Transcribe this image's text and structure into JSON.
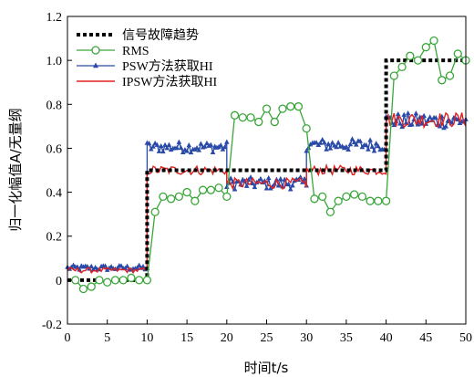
{
  "chart_data": {
    "type": "line",
    "title": "",
    "xlabel": "时间t/s",
    "ylabel": "归一化幅值A/无量纲",
    "xlim": [
      0,
      50
    ],
    "ylim": [
      -0.2,
      1.2
    ],
    "xticks": [
      "0",
      "5",
      "10",
      "15",
      "20",
      "25",
      "30",
      "35",
      "40",
      "45",
      "50"
    ],
    "yticks": [
      "-0.2",
      "0",
      "0.2",
      "0.4",
      "0.6",
      "0.8",
      "1.0",
      "1.2"
    ],
    "grid": false,
    "legend_position": "top-left",
    "series": [
      {
        "name": "信号故障趋势",
        "color": "#000000",
        "style": "dotted-step",
        "x": [
          0,
          10,
          10,
          20,
          20,
          40,
          40,
          50
        ],
        "y": [
          0,
          0,
          0.5,
          0.5,
          0.5,
          0.5,
          1.0,
          1.0
        ]
      },
      {
        "name": "RMS",
        "color": "#3aa63a",
        "marker": "circle-open",
        "x": [
          1,
          2,
          3,
          4,
          5,
          6,
          7,
          8,
          9,
          10,
          11,
          12,
          13,
          14,
          15,
          16,
          17,
          18,
          19,
          20,
          21,
          22,
          23,
          24,
          25,
          26,
          27,
          28,
          29,
          30,
          31,
          32,
          33,
          34,
          35,
          36,
          37,
          38,
          39,
          40,
          41,
          42,
          43,
          44,
          45,
          46,
          47,
          48,
          49,
          50
        ],
        "y": [
          0.0,
          -0.04,
          -0.03,
          0.0,
          -0.01,
          0.0,
          0.0,
          0.01,
          0.0,
          0.0,
          0.31,
          0.38,
          0.37,
          0.38,
          0.4,
          0.36,
          0.41,
          0.41,
          0.42,
          0.38,
          0.75,
          0.74,
          0.74,
          0.72,
          0.78,
          0.72,
          0.78,
          0.79,
          0.79,
          0.69,
          0.37,
          0.38,
          0.31,
          0.36,
          0.38,
          0.39,
          0.38,
          0.36,
          0.36,
          0.36,
          0.93,
          0.97,
          1.02,
          1.0,
          1.06,
          1.09,
          0.91,
          0.93,
          1.03,
          1.0
        ]
      },
      {
        "name": "PSW方法获取HI",
        "color": "#2a4aa8",
        "marker": "triangle",
        "segments": [
          {
            "x0": 0,
            "x1": 10,
            "base": 0.055,
            "amp": 0.012
          },
          {
            "x0": 10,
            "x1": 20,
            "base": 0.605,
            "amp": 0.025
          },
          {
            "x0": 20,
            "x1": 30,
            "base": 0.44,
            "amp": 0.028
          },
          {
            "x0": 30,
            "x1": 40,
            "base": 0.615,
            "amp": 0.028
          },
          {
            "x0": 40,
            "x1": 50,
            "base": 0.725,
            "amp": 0.035
          }
        ]
      },
      {
        "name": "IPSW方法获取HI",
        "color": "#e02020",
        "marker": "none",
        "segments": [
          {
            "x0": 0,
            "x1": 10,
            "base": 0.045,
            "amp": 0.012
          },
          {
            "x0": 10,
            "x1": 20,
            "base": 0.5,
            "amp": 0.022
          },
          {
            "x0": 20,
            "x1": 30,
            "base": 0.44,
            "amp": 0.025
          },
          {
            "x0": 30,
            "x1": 40,
            "base": 0.5,
            "amp": 0.022
          },
          {
            "x0": 40,
            "x1": 50,
            "base": 0.73,
            "amp": 0.035
          }
        ]
      }
    ]
  }
}
